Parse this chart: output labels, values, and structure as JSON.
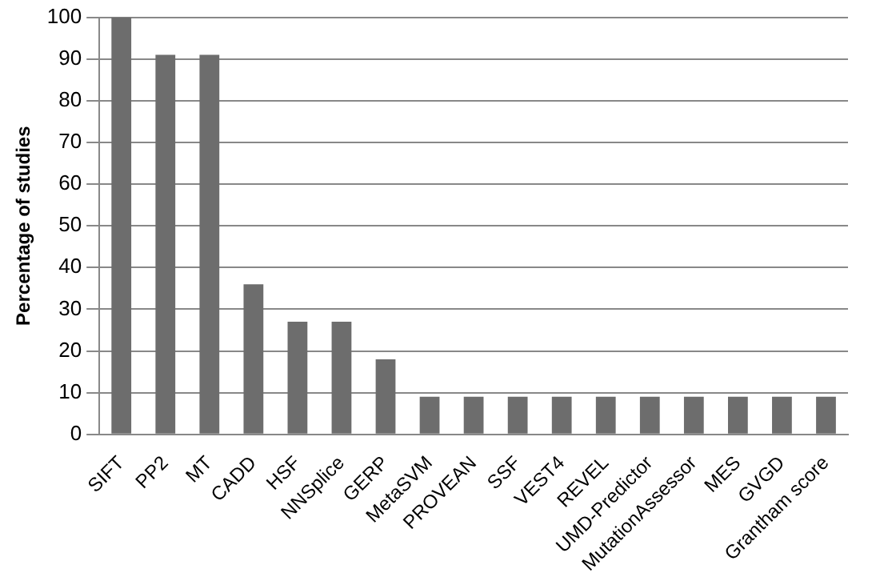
{
  "chart_data": {
    "type": "bar",
    "ylabel": "Percentage of studies",
    "categories": [
      "SIFT",
      "PP2",
      "MT",
      "CADD",
      "HSF",
      "NNSplice",
      "GERP",
      "MetaSVM",
      "PROVEAN",
      "SSF",
      "VEST4",
      "REVEL",
      "UMD-Predictor",
      "MutationAssessor",
      "MES",
      "GVGD",
      "Grantham score"
    ],
    "values": [
      100,
      91,
      91,
      36,
      27,
      27,
      18,
      9,
      9,
      9,
      9,
      9,
      9,
      9,
      9,
      9,
      9
    ],
    "color": "#6d6d6d",
    "ylim": [
      0,
      100
    ],
    "yticks": [
      0,
      10,
      20,
      30,
      40,
      50,
      60,
      70,
      80,
      90,
      100
    ],
    "grid": "y",
    "legend": false
  }
}
